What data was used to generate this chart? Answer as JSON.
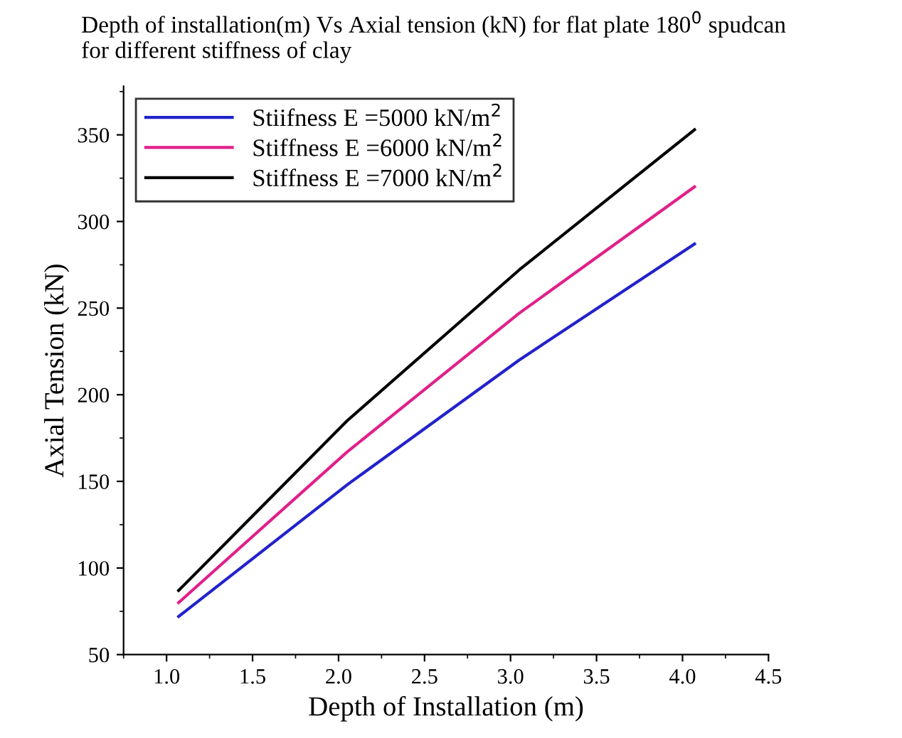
{
  "chart_data": {
    "type": "line",
    "title": "Depth of installation(m) Vs Axial tension (kN) for flat plate 180$^{0}$ spudcan\nfor different stiffness of clay",
    "xlabel": "Depth of Installation (m)",
    "ylabel": "Axial Tension (kN)",
    "series": [
      {
        "name": "Stiifness E =5000 kN/m$^{2}$",
        "color": "#2222cc",
        "x": [
          1.07,
          2.05,
          3.05,
          4.07
        ],
        "values": [
          72,
          148,
          220,
          287
        ]
      },
      {
        "name": "Stiffness E =6000 kN/m$^{2}$",
        "color": "#e0208a",
        "x": [
          1.07,
          2.05,
          3.05,
          4.07
        ],
        "values": [
          80,
          167,
          247,
          320
        ]
      },
      {
        "name": "Stiffness E =7000 kN/m$^{2}$",
        "color": "#000000",
        "x": [
          1.07,
          2.05,
          3.05,
          4.07
        ],
        "values": [
          87,
          185,
          272,
          353
        ]
      }
    ],
    "xlim": [
      0.75,
      4.5
    ],
    "xticks": [
      {
        "value": 1.0,
        "label": "1.0"
      },
      1.5,
      {
        "value": 2.0,
        "label": "2.0"
      },
      2.5,
      {
        "value": 3.0,
        "label": "3.0"
      },
      3.5,
      {
        "value": 4.0,
        "label": "4.0"
      },
      4.5
    ],
    "ylim": [
      50,
      378
    ],
    "yticks": [
      50,
      100,
      150,
      200,
      250,
      300,
      350
    ],
    "grid": false,
    "legend": "top left",
    "marker": "none",
    "line_style": "solid"
  }
}
